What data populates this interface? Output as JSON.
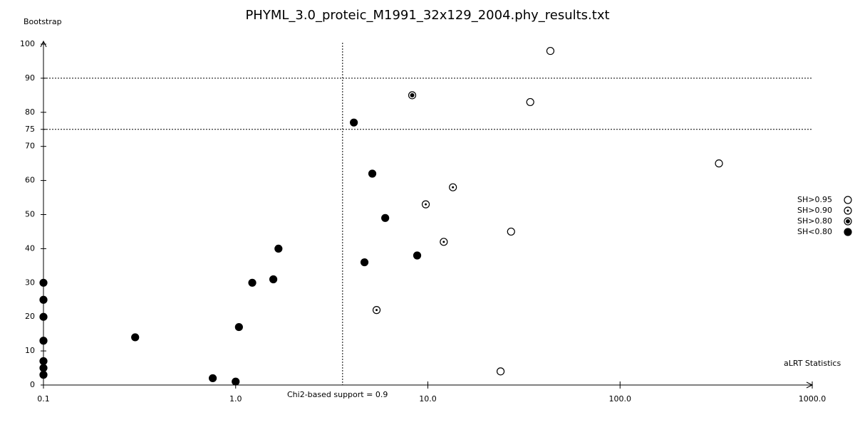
{
  "chart_data": {
    "type": "scatter",
    "title": "PHYML_3.0_proteic_M1991_32x129_2004.phy_results.txt",
    "y_label": "Bootstrap",
    "x_label": "aLRT Statistics",
    "annotation": "Chi2-based support = 0.9",
    "x_log": true,
    "xlim": [
      0.1,
      1000
    ],
    "ylim": [
      0,
      100
    ],
    "xticks": [
      0.1,
      {
        "value": 1,
        "label": "1.0"
      },
      {
        "value": 10,
        "label": "10.0"
      },
      {
        "value": 100,
        "label": "100.0"
      },
      {
        "value": 1000,
        "label": "1000.0"
      }
    ],
    "yticks": [
      0,
      10,
      20,
      30,
      40,
      50,
      60,
      70,
      75,
      80,
      90,
      100
    ],
    "hlines": [
      75,
      90
    ],
    "vline": 3.6,
    "legend": "right",
    "series": [
      {
        "name": "SH>0.95",
        "color": "#000000",
        "marker": "open",
        "x": [
          43.4,
          34.1,
          327,
          27.1,
          23.9
        ],
        "values": [
          98,
          83,
          65,
          45,
          4
        ]
      },
      {
        "name": "SH>0.90",
        "color": "#000000",
        "marker": "dot",
        "x": [
          13.5,
          9.75,
          12.1,
          5.41
        ],
        "values": [
          58,
          53,
          42,
          22
        ]
      },
      {
        "name": "SH>0.80",
        "color": "#000000",
        "marker": "ringed",
        "x": [
          8.29
        ],
        "values": [
          85
        ]
      },
      {
        "name": "SH<0.80",
        "color": "#000000",
        "marker": "filled",
        "x": [
          4.12,
          5.14,
          6.0,
          8.8,
          4.68,
          1.67,
          1.57,
          1.22,
          1.04,
          0.3,
          0.76,
          1.0,
          0.1,
          0.1,
          0.1,
          0.1,
          0.1,
          0.1,
          0.1
        ],
        "values": [
          77,
          62,
          49,
          38,
          36,
          40,
          31,
          30,
          17,
          14,
          2,
          1,
          30,
          25,
          20,
          13,
          7,
          5,
          3
        ]
      }
    ]
  }
}
